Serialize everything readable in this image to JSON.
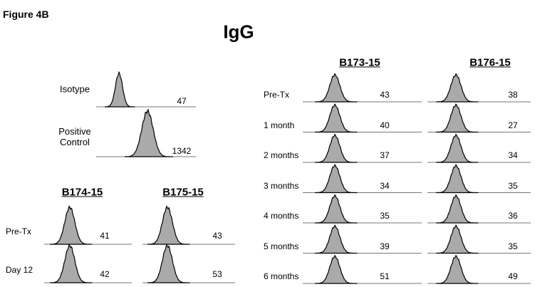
{
  "header": {
    "figure_label": "Figure 4B",
    "title": "IgG"
  },
  "controls": [
    {
      "label": "Isotype",
      "value": 47
    },
    {
      "label": "Positive Control",
      "value": 1342
    }
  ],
  "left_group": {
    "row_labels": [
      "Pre-Tx",
      "Day 12"
    ],
    "samples": [
      {
        "name": "B174-15",
        "values": [
          41,
          42
        ]
      },
      {
        "name": "B175-15",
        "values": [
          43,
          53
        ]
      }
    ]
  },
  "right_group": {
    "row_labels": [
      "Pre-Tx",
      "1 month",
      "2 months",
      "3 months",
      "4 months",
      "5 months",
      "6 months"
    ],
    "samples": [
      {
        "name": "B173-15",
        "values": [
          43,
          40,
          37,
          34,
          35,
          39,
          51
        ]
      },
      {
        "name": "B176-15",
        "values": [
          38,
          27,
          34,
          35,
          36,
          35,
          49
        ]
      }
    ]
  }
}
